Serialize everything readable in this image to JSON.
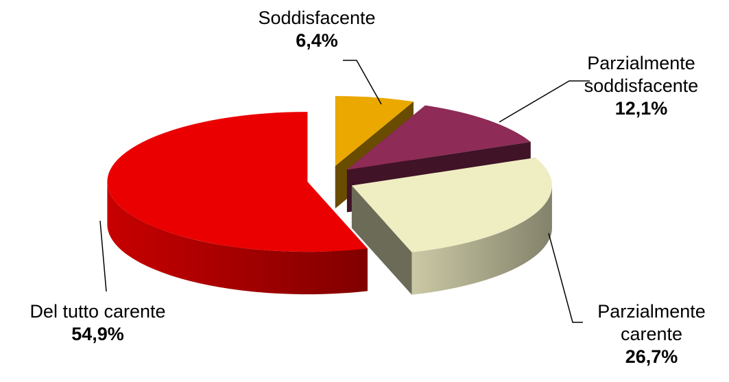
{
  "chart_data": {
    "type": "pie3d",
    "categories": [
      "Soddisfacente",
      "Parzialmente soddisfacente",
      "Parzialmente carente",
      "Del tutto carente"
    ],
    "values": [
      6.4,
      12.1,
      26.7,
      54.9
    ],
    "value_labels": [
      "6,4%",
      "12,1%",
      "26,7%",
      "54,9%"
    ],
    "colors": [
      "#eaa800",
      "#8e2b57",
      "#efedc2",
      "#ea0000"
    ]
  }
}
